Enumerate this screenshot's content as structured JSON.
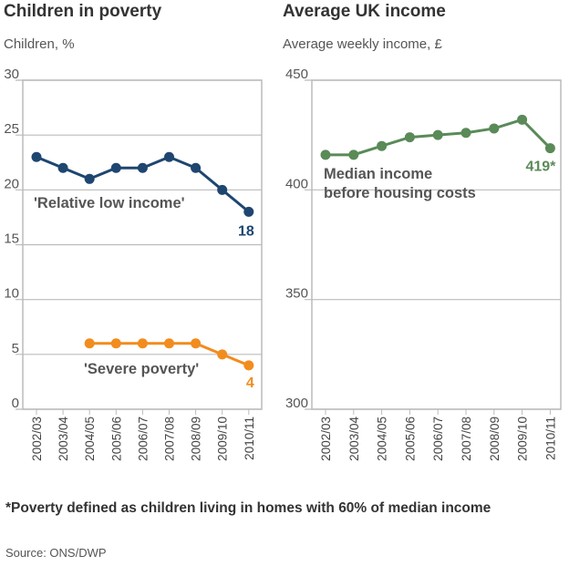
{
  "chart_data": [
    {
      "type": "line",
      "title": "Children in poverty",
      "ylabel": "Children, %",
      "ylim": [
        0,
        30
      ],
      "yticks": [
        0,
        5,
        10,
        15,
        20,
        25,
        30
      ],
      "categories": [
        "2002/03",
        "2003/04",
        "2004/05",
        "2005/06",
        "2006/07",
        "2007/08",
        "2008/09",
        "2009/10",
        "2010/11"
      ],
      "grid": true,
      "series": [
        {
          "name": "'Relative low income'",
          "color": "#1e4670",
          "values": [
            23,
            22,
            21,
            22,
            22,
            23,
            22,
            20,
            18
          ],
          "end_label": "18"
        },
        {
          "name": "'Severe poverty'",
          "color": "#f28c1e",
          "values": [
            null,
            null,
            6,
            6,
            6,
            6,
            6,
            5,
            4
          ],
          "end_label": "4"
        }
      ]
    },
    {
      "type": "line",
      "title": "Average UK income",
      "ylabel": "Average weekly income, £",
      "ylim": [
        300,
        450
      ],
      "yticks": [
        300,
        350,
        400,
        450
      ],
      "categories": [
        "2002/03",
        "2003/04",
        "2004/05",
        "2005/06",
        "2006/07",
        "2007/08",
        "2008/09",
        "2009/10",
        "2010/11"
      ],
      "grid": true,
      "series": [
        {
          "name": "Median income before housing costs",
          "color": "#5a8a58",
          "values": [
            416,
            416,
            420,
            424,
            425,
            426,
            428,
            432,
            419
          ],
          "end_label": "419*"
        }
      ]
    }
  ],
  "footnote": "*Poverty defined as children living in homes with 60% of median income",
  "source": "Source: ONS/DWP"
}
